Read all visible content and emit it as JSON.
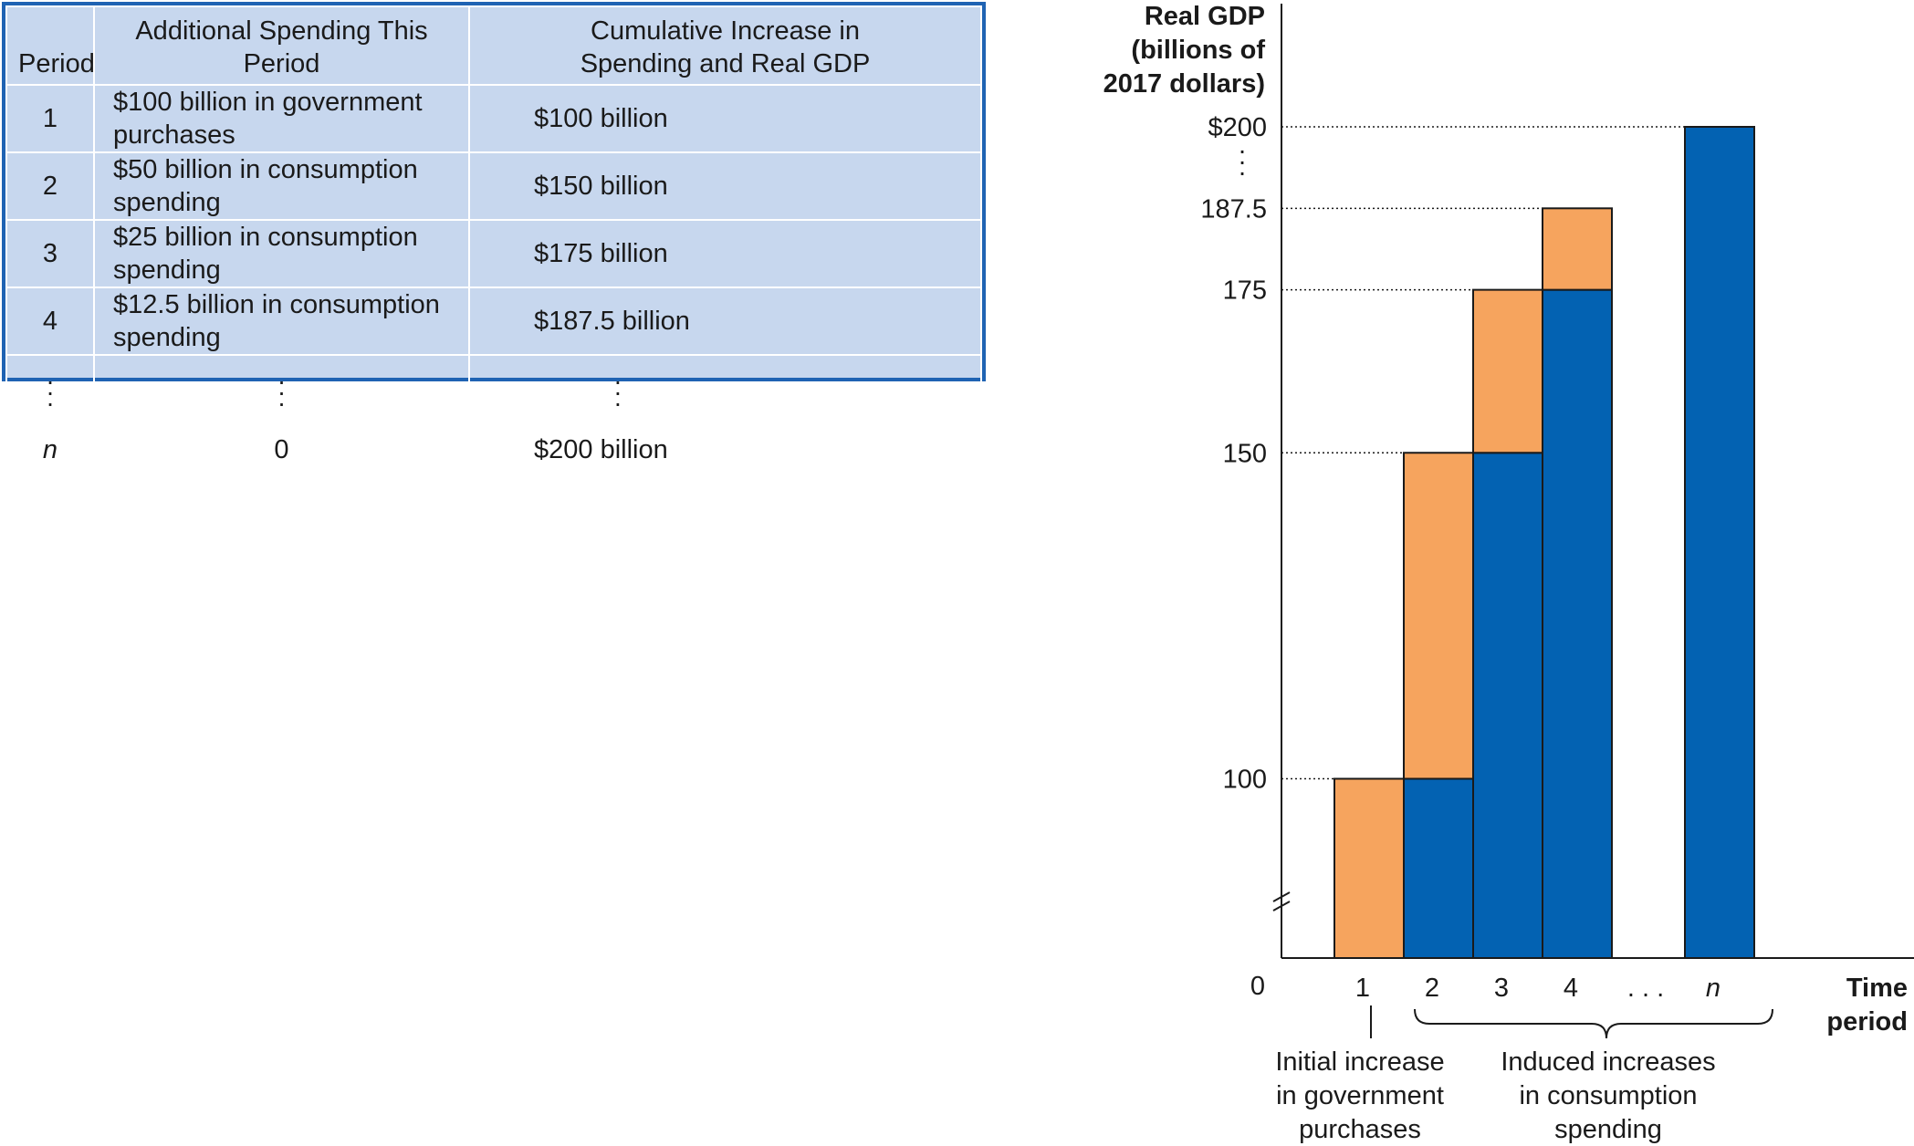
{
  "table": {
    "headers": [
      "Period",
      "Additional Spending This Period",
      "Cumulative Increase in",
      "Spending and Real GDP"
    ],
    "rows": [
      [
        "1",
        "$100 billion in government purchases",
        "$100 billion"
      ],
      [
        "2",
        "$50 billion in consumption spending",
        "$150 billion"
      ],
      [
        "3",
        "$25 billion in consumption spending",
        "$175 billion"
      ],
      [
        "4",
        "$12.5 billion in consumption spending",
        "$187.5 billion"
      ]
    ],
    "last_row": [
      "n",
      "0",
      "$200 billion"
    ]
  },
  "chart_data": {
    "type": "bar",
    "ylabel_lines": [
      "Real GDP",
      "(billions of",
      "2017 dollars)"
    ],
    "xlabel_lines": [
      "Time",
      "period"
    ],
    "origin_label": "0",
    "y_ticks": [
      {
        "value": 200,
        "label": "$200"
      },
      {
        "value": 187.5,
        "label": "187.5"
      },
      {
        "value": 175,
        "label": "175"
      },
      {
        "value": 150,
        "label": "150"
      },
      {
        "value": 100,
        "label": "100"
      }
    ],
    "ylim": [
      72.5,
      200
    ],
    "axis_break": true,
    "categories": [
      "1",
      "2",
      "3",
      "4",
      "n"
    ],
    "ellipsis_label": ". . .",
    "series": [
      {
        "role": "carried-over",
        "color": "#0362b2",
        "values": [
          0,
          100,
          150,
          175,
          200
        ]
      },
      {
        "role": "new-spending",
        "color": "#f6a45e",
        "values": [
          100,
          50,
          25,
          12.5,
          0
        ]
      }
    ],
    "annotations": {
      "initial": [
        "Initial increase",
        "in government",
        "purchases"
      ],
      "induced": [
        "Induced increases",
        "in consumption",
        "spending"
      ]
    },
    "colors": {
      "orange": "#f6a45e",
      "blue": "#0362b2",
      "table_bg": "#c7d7ee",
      "table_border": "#1f63b3"
    }
  }
}
